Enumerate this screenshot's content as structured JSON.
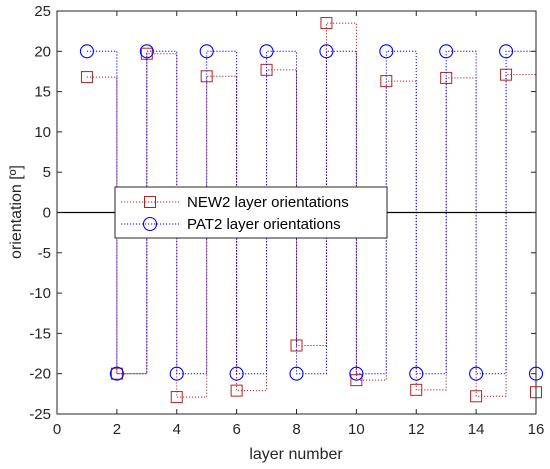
{
  "chart_data": {
    "type": "line",
    "xlabel": "layer number",
    "ylabel": "orientation [º]",
    "xlim": [
      0,
      16
    ],
    "ylim": [
      -25,
      25
    ],
    "xticks": [
      "0",
      "2",
      "4",
      "6",
      "8",
      "10",
      "12",
      "14",
      "16"
    ],
    "yticks": [
      "-25",
      "-20",
      "-15",
      "-10",
      "-5",
      "0",
      "5",
      "10",
      "15",
      "20",
      "25"
    ],
    "grid": false,
    "legend_position": "center-left",
    "series": [
      {
        "name": "NEW2 layer orientations",
        "color": "#b22222",
        "marker": "square",
        "line": "dotted-stairs",
        "x": [
          1,
          2,
          3,
          4,
          5,
          6,
          7,
          8,
          9,
          10,
          11,
          12,
          13,
          14,
          15,
          16
        ],
        "y": [
          16.8,
          -20.0,
          19.7,
          -22.9,
          16.9,
          -22.1,
          17.7,
          -16.5,
          23.5,
          -20.8,
          16.3,
          -22.0,
          16.7,
          -22.8,
          17.1,
          -22.3
        ]
      },
      {
        "name": "PAT2 layer orientations",
        "color": "#0000ff",
        "marker": "circle",
        "line": "dotted-stairs",
        "x": [
          1,
          2,
          3,
          4,
          5,
          6,
          7,
          8,
          9,
          10,
          11,
          12,
          13,
          14,
          15,
          16
        ],
        "y": [
          20,
          -20,
          20,
          -20,
          20,
          -20,
          20,
          -20,
          20,
          -20,
          20,
          -20,
          20,
          -20,
          20,
          -20
        ]
      }
    ]
  }
}
